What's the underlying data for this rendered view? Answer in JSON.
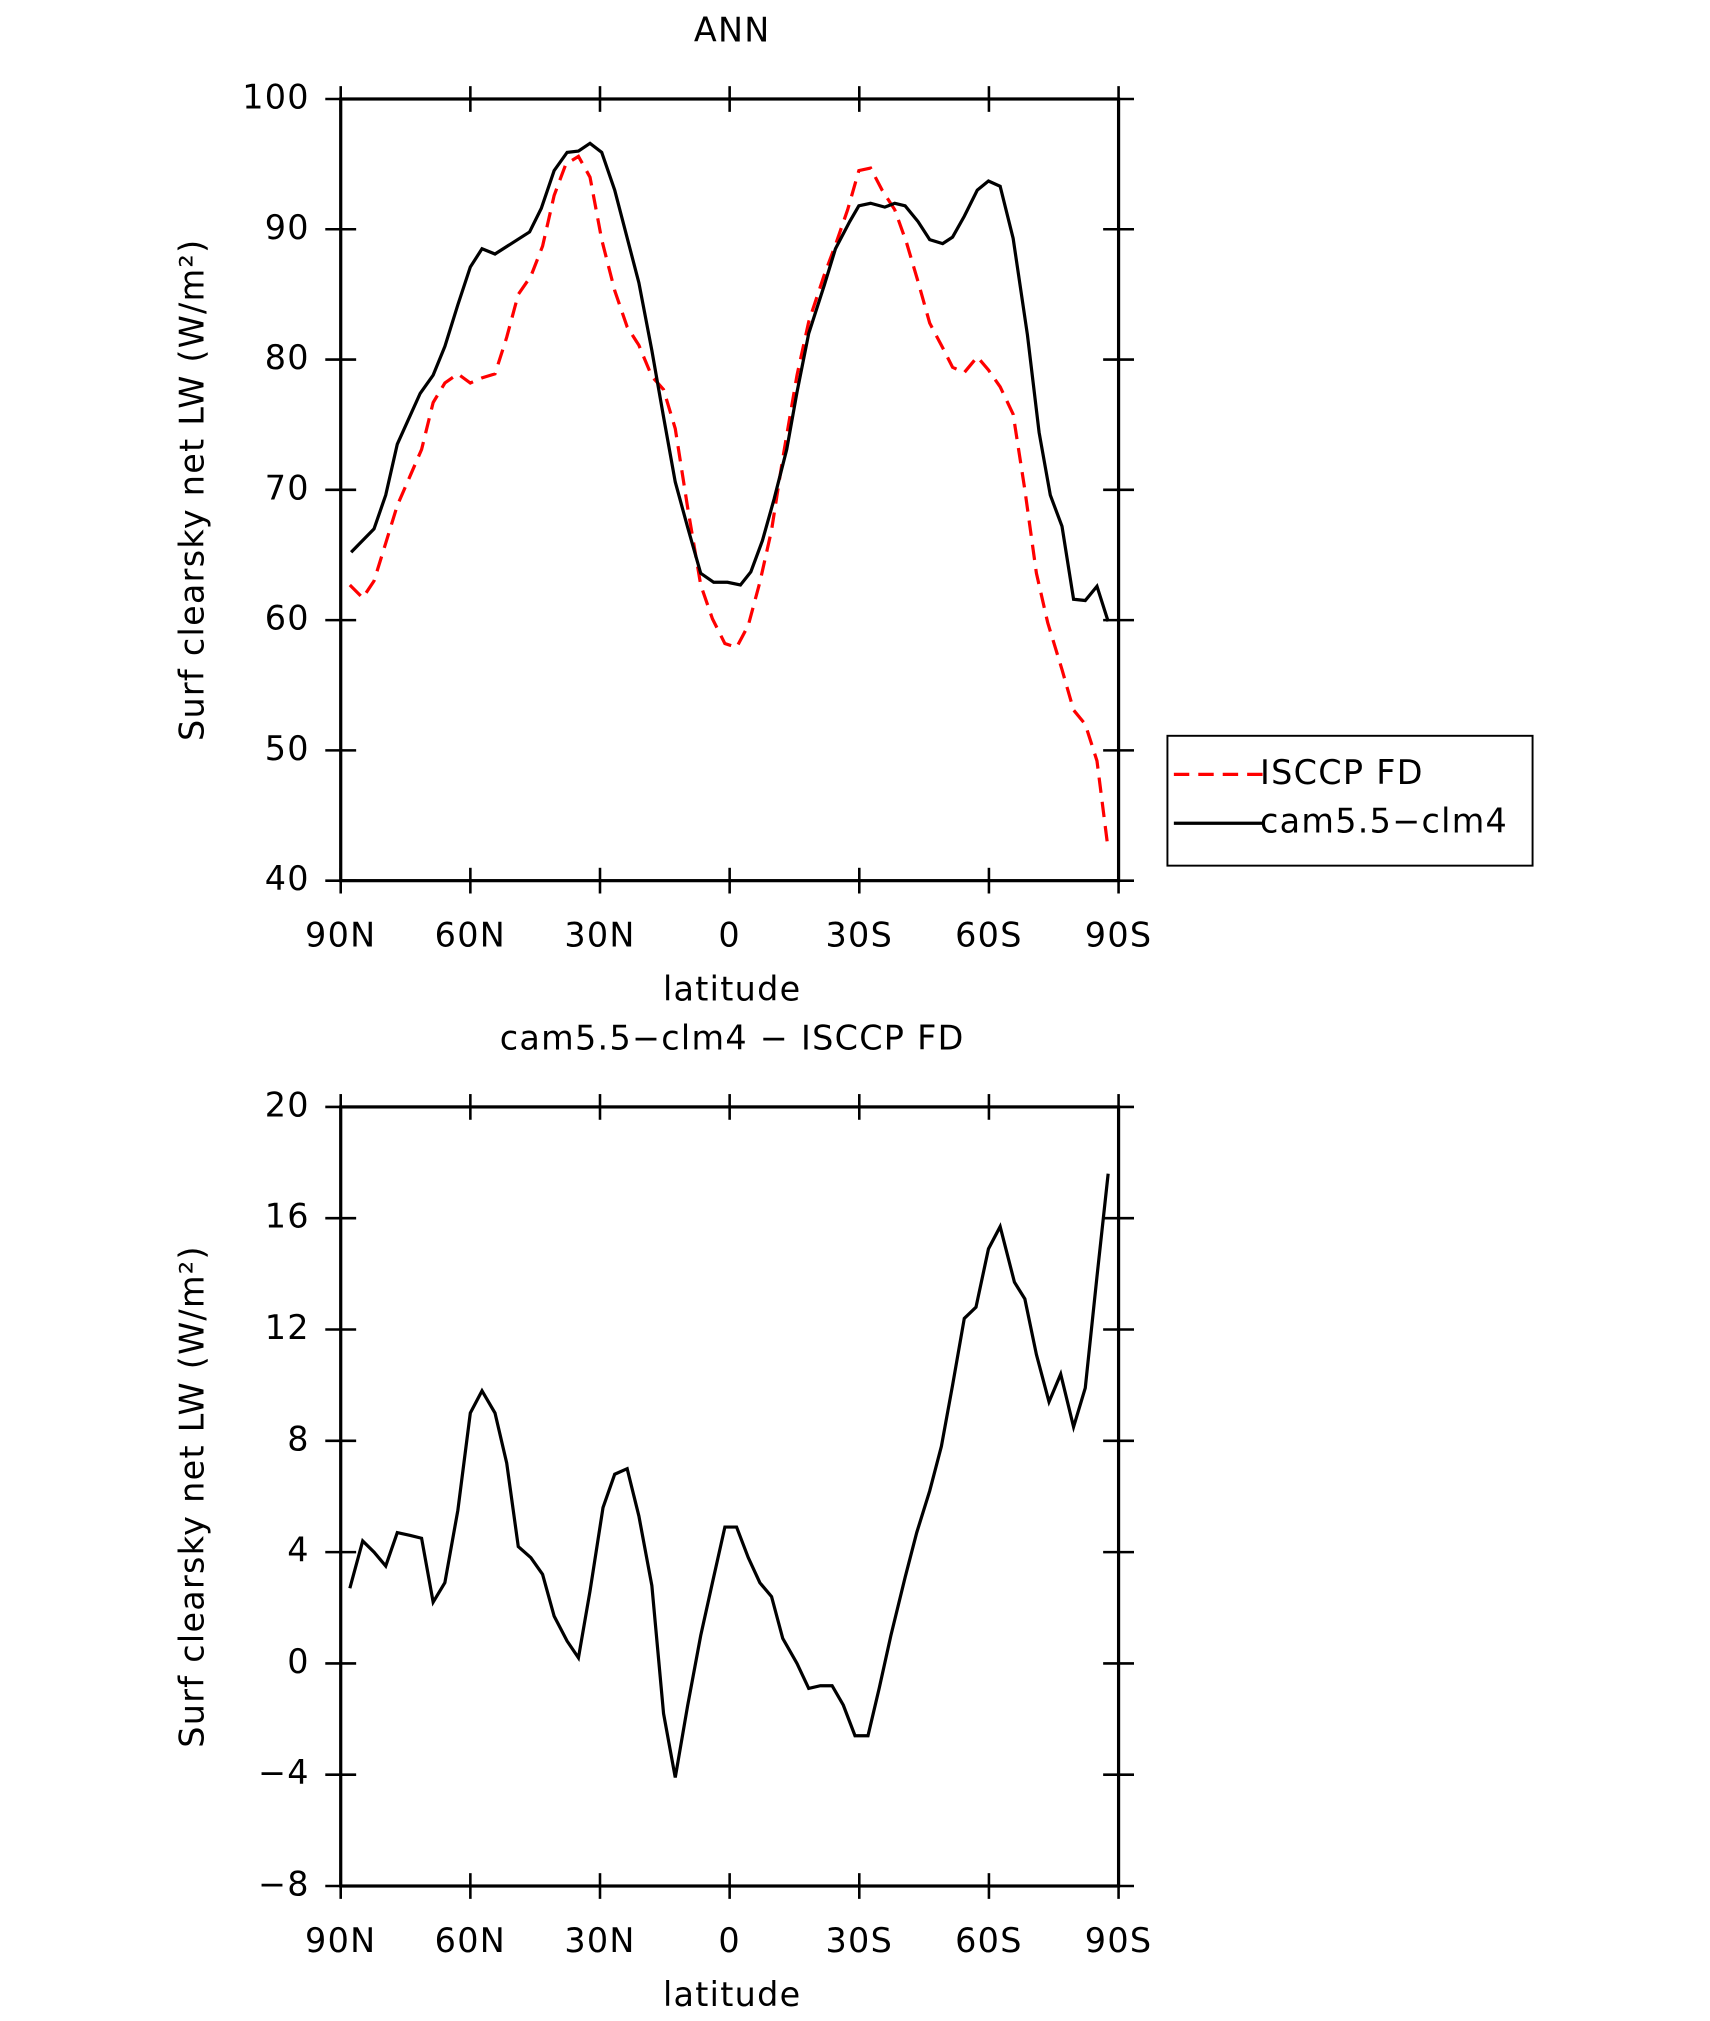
{
  "chart_data": [
    {
      "type": "line",
      "title": "ANN",
      "xlabel": "latitude",
      "ylabel": "Surf clearsky net LW (W/m²)",
      "xlim": [
        90,
        -90
      ],
      "ylim": [
        40,
        100
      ],
      "xticks": [
        {
          "value": 90,
          "label": "90N"
        },
        {
          "value": 60,
          "label": "60N"
        },
        {
          "value": 30,
          "label": "30N"
        },
        0,
        {
          "value": -30,
          "label": "30S"
        },
        {
          "value": -60,
          "label": "60S"
        },
        {
          "value": -90,
          "label": "90S"
        }
      ],
      "yticks": [
        40,
        50,
        60,
        70,
        80,
        90,
        100
      ],
      "legend": "right",
      "series": [
        {
          "name": "ISCCP FD",
          "color": "#ff0000",
          "linestyle": "dashed",
          "x": [
            87.9,
            84.9,
            82.3,
            79.6,
            76.9,
            73.9,
            71.3,
            68.6,
            65.9,
            62.9,
            60.0,
            57.3,
            54.3,
            51.6,
            48.9,
            46.0,
            43.3,
            40.6,
            37.9,
            35.0,
            32.3,
            29.6,
            26.6,
            23.7,
            21.0,
            18.0,
            15.3,
            12.6,
            9.7,
            6.7,
            4.0,
            1.1,
            -1.6,
            -4.3,
            -7.0,
            -9.7,
            -12.3,
            -15.6,
            -18.3,
            -21.9,
            -24.5,
            -27.3,
            -29.9,
            -32.6,
            -35.3,
            -38.2,
            -40.9,
            -43.6,
            -46.3,
            -49.3,
            -51.6,
            -54.3,
            -57.3,
            -59.9,
            -62.6,
            -65.6,
            -68.3,
            -71.0,
            -73.6,
            -76.9,
            -79.6,
            -82.3,
            -85.0,
            -87.6
          ],
          "values": [
            62.7,
            61.7,
            63.0,
            65.9,
            68.8,
            71.1,
            73.1,
            76.7,
            78.2,
            78.9,
            78.2,
            78.6,
            78.9,
            81.7,
            85.0,
            86.4,
            88.7,
            92.6,
            95.0,
            95.6,
            94.0,
            89.2,
            85.3,
            82.5,
            81.1,
            78.7,
            77.7,
            74.7,
            68.6,
            62.7,
            60.1,
            58.2,
            57.9,
            59.6,
            62.9,
            66.9,
            72.4,
            78.8,
            82.9,
            86.5,
            88.8,
            91.5,
            94.5,
            94.7,
            93.0,
            91.5,
            89.0,
            86.0,
            82.8,
            80.9,
            79.4,
            79.0,
            80.2,
            79.2,
            77.9,
            75.8,
            70.0,
            63.6,
            59.8,
            56.2,
            53.1,
            52.0,
            49.2,
            42.4
          ]
        },
        {
          "name": "cam5.5−clm4",
          "color": "#000000",
          "linestyle": "solid",
          "x": [
            87.6,
            82.3,
            79.6,
            76.9,
            71.6,
            68.6,
            65.9,
            62.9,
            60.0,
            57.3,
            54.3,
            46.3,
            43.6,
            40.6,
            37.6,
            35.0,
            32.3,
            29.6,
            26.6,
            21.0,
            18.0,
            15.3,
            12.6,
            9.7,
            6.7,
            3.7,
            0.5,
            -2.5,
            -4.9,
            -7.6,
            -10.3,
            -13.2,
            -15.6,
            -18.3,
            -21.9,
            -24.5,
            -27.8,
            -29.9,
            -32.6,
            -35.9,
            -38.2,
            -40.6,
            -43.6,
            -46.3,
            -49.3,
            -51.6,
            -54.3,
            -57.3,
            -59.9,
            -62.6,
            -65.6,
            -68.9,
            -71.6,
            -74.2,
            -76.9,
            -79.6,
            -82.3,
            -85.0,
            -87.6
          ],
          "values": [
            65.2,
            67.0,
            69.6,
            73.5,
            77.4,
            78.8,
            81.0,
            84.2,
            87.1,
            88.5,
            88.1,
            89.8,
            91.6,
            94.5,
            95.9,
            96.0,
            96.6,
            95.9,
            93.0,
            85.9,
            80.7,
            75.6,
            70.6,
            67.1,
            63.6,
            62.9,
            62.9,
            62.7,
            63.7,
            66.1,
            69.3,
            73.1,
            77.5,
            82.0,
            85.7,
            88.5,
            90.6,
            91.8,
            92.0,
            91.7,
            92.0,
            91.8,
            90.6,
            89.2,
            88.9,
            89.4,
            91.0,
            93.0,
            93.7,
            93.3,
            89.3,
            81.9,
            74.4,
            69.6,
            67.2,
            61.6,
            61.5,
            62.6,
            59.9
          ]
        }
      ]
    },
    {
      "type": "line",
      "title": "cam5.5−clm4 − ISCCP FD",
      "xlabel": "latitude",
      "ylabel": "Surf clearsky net LW (W/m²)",
      "xlim": [
        90,
        -90
      ],
      "ylim": [
        -8,
        20
      ],
      "xticks": [
        {
          "value": 90,
          "label": "90N"
        },
        {
          "value": 60,
          "label": "60N"
        },
        {
          "value": 30,
          "label": "30N"
        },
        0,
        {
          "value": -30,
          "label": "30S"
        },
        {
          "value": -60,
          "label": "60S"
        },
        {
          "value": -90,
          "label": "90S"
        }
      ],
      "yticks": [
        {
          "value": -8,
          "label": "−8"
        },
        {
          "value": -4,
          "label": "−4"
        },
        0,
        4,
        8,
        12,
        16,
        20
      ],
      "color": "#000000",
      "x": [
        87.9,
        84.9,
        82.3,
        79.6,
        76.9,
        73.9,
        71.3,
        68.6,
        65.9,
        62.9,
        60.0,
        57.3,
        54.3,
        51.6,
        48.9,
        46.0,
        43.3,
        40.6,
        37.6,
        35.0,
        32.3,
        29.3,
        26.6,
        23.7,
        21.0,
        18.0,
        15.3,
        12.6,
        9.7,
        6.7,
        4.0,
        1.1,
        -1.6,
        -4.3,
        -7.0,
        -9.7,
        -12.3,
        -15.6,
        -18.3,
        -21.0,
        -23.7,
        -26.3,
        -29.0,
        -32.0,
        -34.6,
        -37.3,
        -40.6,
        -43.3,
        -46.3,
        -49.0,
        -51.6,
        -54.3,
        -57.0,
        -59.9,
        -62.6,
        -65.9,
        -68.3,
        -71.0,
        -73.9,
        -76.6,
        -79.6,
        -82.3,
        -85.0,
        -87.6
      ],
      "values": [
        2.7,
        4.4,
        4.0,
        3.5,
        4.7,
        4.6,
        4.5,
        2.2,
        2.9,
        5.5,
        9.0,
        9.8,
        9.0,
        7.2,
        4.2,
        3.8,
        3.2,
        1.7,
        0.8,
        0.2,
        2.6,
        5.6,
        6.8,
        7.0,
        5.3,
        2.8,
        -1.8,
        -4.1,
        -1.5,
        1.0,
        2.9,
        4.9,
        4.9,
        3.8,
        2.9,
        2.4,
        0.9,
        0.0,
        -0.9,
        -0.8,
        -0.8,
        -1.5,
        -2.6,
        -2.6,
        -0.9,
        1.0,
        3.1,
        4.7,
        6.2,
        7.8,
        10.0,
        12.4,
        12.8,
        14.9,
        15.7,
        13.7,
        13.1,
        11.1,
        9.4,
        10.4,
        8.5,
        9.9,
        13.9,
        17.6
      ]
    }
  ]
}
